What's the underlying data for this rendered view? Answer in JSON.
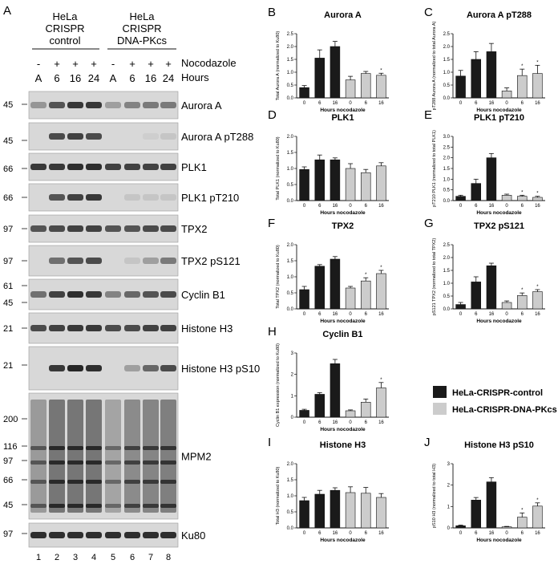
{
  "figure": {
    "panel_label": "A",
    "cell_lines": [
      {
        "line1": "HeLa",
        "line2": "CRISPR",
        "line3": "control"
      },
      {
        "line1": "HeLa",
        "line2": "CRISPR",
        "line3": "DNA-PKcs"
      }
    ],
    "nocodazole_signs": [
      "-",
      "+",
      "+",
      "+",
      "-",
      "+",
      "+",
      "+"
    ],
    "nocodazole_label": "Nocodazole",
    "hours": [
      "A",
      "6",
      "16",
      "24",
      "A",
      "6",
      "16",
      "24"
    ],
    "hours_label": "Hours",
    "lane_numbers": [
      "1",
      "2",
      "3",
      "4",
      "5",
      "6",
      "7",
      "8"
    ],
    "blots": [
      {
        "label": "Aurora A",
        "markers": [
          "45"
        ]
      },
      {
        "label": "Aurora A pT288",
        "markers": [
          "45"
        ]
      },
      {
        "label": "PLK1",
        "markers": [
          "66"
        ]
      },
      {
        "label": "PLK1 pT210",
        "markers": [
          "66"
        ]
      },
      {
        "label": "TPX2",
        "markers": [
          "97"
        ]
      },
      {
        "label": "TPX2 pS121",
        "markers": [
          "97"
        ]
      },
      {
        "label": "Cyclin B1",
        "markers": [
          "61",
          "45"
        ]
      },
      {
        "label": "Histone H3",
        "markers": [
          "21"
        ]
      },
      {
        "label": "Histone H3 pS10",
        "markers": [
          "21"
        ]
      },
      {
        "label": "MPM2",
        "markers": [
          "200",
          "116",
          "97",
          "66",
          "45"
        ]
      },
      {
        "label": "Ku80",
        "markers": [
          "97"
        ]
      }
    ],
    "legend": {
      "control": "HeLa-CRISPR-control",
      "dnapk": "HeLa-CRISPR-DNA-PKcs"
    },
    "colors": {
      "control": "#1a1a1a",
      "dnapk": "#cccccc",
      "blot_bg": "#d8d8d8",
      "band": "#1c1c1c"
    }
  },
  "chart_data": [
    {
      "panel": "B",
      "type": "bar",
      "title": "Aurora A",
      "ylabel": "Total Aurora A (normalized to Ku80)",
      "xlabel": "Hours nocodazole",
      "categories": [
        "0",
        "6",
        "16",
        "0",
        "6",
        "16"
      ],
      "groups": [
        "control",
        "control",
        "control",
        "dnapk",
        "dnapk",
        "dnapk"
      ],
      "values": [
        0.4,
        1.55,
        2.0,
        0.7,
        0.95,
        0.88
      ],
      "errors": [
        0.08,
        0.32,
        0.2,
        0.14,
        0.08,
        0.08
      ],
      "ylim": [
        0,
        2.5
      ],
      "yticks": [
        "0.0",
        "0.5",
        "1.0",
        "1.5",
        "2.0",
        "2.5"
      ],
      "sig": [
        "",
        "",
        "",
        "",
        "",
        "*"
      ]
    },
    {
      "panel": "C",
      "type": "bar",
      "title": "Aurora A pT288",
      "ylabel": "pT288 Aurora A (normalized to total Aurora A)",
      "xlabel": "Hours nocodazole",
      "categories": [
        "0",
        "6",
        "16",
        "0",
        "6",
        "16"
      ],
      "groups": [
        "control",
        "control",
        "control",
        "dnapk",
        "dnapk",
        "dnapk"
      ],
      "values": [
        0.85,
        1.5,
        1.8,
        0.27,
        0.87,
        0.95
      ],
      "errors": [
        0.22,
        0.3,
        0.32,
        0.12,
        0.25,
        0.32
      ],
      "ylim": [
        0,
        2.5
      ],
      "yticks": [
        "0.0",
        "0.5",
        "1.0",
        "1.5",
        "2.0",
        "2.5"
      ],
      "sig": [
        "",
        "",
        "",
        "",
        "*",
        "*"
      ]
    },
    {
      "panel": "D",
      "type": "bar",
      "title": "PLK1",
      "ylabel": "Total PLK1 (normalized to Ku80)",
      "xlabel": "Hours nocodazole",
      "categories": [
        "0",
        "6",
        "16",
        "0",
        "6",
        "16"
      ],
      "groups": [
        "control",
        "control",
        "control",
        "dnapk",
        "dnapk",
        "dnapk"
      ],
      "values": [
        0.97,
        1.27,
        1.27,
        1.0,
        0.87,
        1.08
      ],
      "errors": [
        0.08,
        0.15,
        0.06,
        0.15,
        0.1,
        0.1
      ],
      "ylim": [
        0,
        2.0
      ],
      "yticks": [
        "0.0",
        "0.5",
        "1.0",
        "1.5",
        "2.0"
      ],
      "sig": [
        "",
        "",
        "",
        "",
        "",
        ""
      ]
    },
    {
      "panel": "E",
      "type": "bar",
      "title": "PLK1 pT210",
      "ylabel": "pT210 PLK1 (normalized to total PLK1)",
      "xlabel": "Hours nocodazole",
      "categories": [
        "0",
        "6",
        "16",
        "0",
        "6",
        "16"
      ],
      "groups": [
        "control",
        "control",
        "control",
        "dnapk",
        "dnapk",
        "dnapk"
      ],
      "values": [
        0.2,
        0.8,
        2.0,
        0.25,
        0.2,
        0.15
      ],
      "errors": [
        0.05,
        0.2,
        0.2,
        0.05,
        0.05,
        0.05
      ],
      "ylim": [
        0,
        3.0
      ],
      "yticks": [
        "0.0",
        "0.5",
        "1.0",
        "1.5",
        "2.0",
        "2.5",
        "3.0"
      ],
      "sig": [
        "",
        "",
        "",
        "",
        "*",
        "*"
      ]
    },
    {
      "panel": "F",
      "type": "bar",
      "title": "TPX2",
      "ylabel": "Total TPX2 (normalized to Ku80)",
      "xlabel": "Hours nocodazole",
      "categories": [
        "0",
        "6",
        "16",
        "0",
        "6",
        "16"
      ],
      "groups": [
        "control",
        "control",
        "control",
        "dnapk",
        "dnapk",
        "dnapk"
      ],
      "values": [
        0.6,
        1.33,
        1.55,
        0.65,
        0.87,
        1.1
      ],
      "errors": [
        0.1,
        0.05,
        0.08,
        0.05,
        0.1,
        0.1
      ],
      "ylim": [
        0,
        2.0
      ],
      "yticks": [
        "0.0",
        "0.5",
        "1.0",
        "1.5",
        "2.0"
      ],
      "sig": [
        "",
        "",
        "",
        "",
        "*",
        "*"
      ]
    },
    {
      "panel": "G",
      "type": "bar",
      "title": "TPX2 pS121",
      "ylabel": "pS121 TPX2 (normalized to total TPX2)",
      "xlabel": "Hours nocodazole",
      "categories": [
        "0",
        "6",
        "16",
        "0",
        "6",
        "16"
      ],
      "groups": [
        "control",
        "control",
        "control",
        "dnapk",
        "dnapk",
        "dnapk"
      ],
      "values": [
        0.17,
        1.05,
        1.68,
        0.25,
        0.52,
        0.67
      ],
      "errors": [
        0.08,
        0.2,
        0.1,
        0.06,
        0.1,
        0.08
      ],
      "ylim": [
        0,
        2.5
      ],
      "yticks": [
        "0.0",
        "0.5",
        "1.0",
        "1.5",
        "2.0",
        "2.5"
      ],
      "sig": [
        "",
        "",
        "",
        "",
        "*",
        "*"
      ]
    },
    {
      "panel": "H",
      "type": "bar",
      "title": "Cyclin B1",
      "ylabel": "Cyclin B1 expression (normalized to Ku80)",
      "xlabel": "Hours nocodazole",
      "categories": [
        "0",
        "6",
        "16",
        "0",
        "6",
        "16"
      ],
      "groups": [
        "control",
        "control",
        "control",
        "dnapk",
        "dnapk",
        "dnapk"
      ],
      "values": [
        0.32,
        1.07,
        2.5,
        0.3,
        0.7,
        1.37
      ],
      "errors": [
        0.05,
        0.08,
        0.2,
        0.04,
        0.15,
        0.25
      ],
      "ylim": [
        0,
        3
      ],
      "yticks": [
        "0",
        "1",
        "2",
        "3"
      ],
      "sig": [
        "",
        "",
        "",
        "",
        "",
        "*"
      ]
    },
    {
      "panel": "I",
      "type": "bar",
      "title": "Histone H3",
      "ylabel": "Total H3 (normalized to Ku80)",
      "xlabel": "Hours nocodazole",
      "categories": [
        "0",
        "6",
        "16",
        "0",
        "6",
        "16"
      ],
      "groups": [
        "control",
        "control",
        "control",
        "dnapk",
        "dnapk",
        "dnapk"
      ],
      "values": [
        0.85,
        1.05,
        1.17,
        1.1,
        1.08,
        0.95
      ],
      "errors": [
        0.1,
        0.12,
        0.08,
        0.18,
        0.18,
        0.12
      ],
      "ylim": [
        0,
        2.0
      ],
      "yticks": [
        "0.0",
        "0.5",
        "1.0",
        "1.5",
        "2.0"
      ],
      "sig": [
        "",
        "",
        "",
        "",
        "",
        ""
      ]
    },
    {
      "panel": "J",
      "type": "bar",
      "title": "Histone H3 pS10",
      "ylabel": "pS10 H3 (normalized to total H3)",
      "xlabel": "Hours nocodazole",
      "categories": [
        "0",
        "6",
        "16",
        "0",
        "6",
        "16"
      ],
      "groups": [
        "control",
        "control",
        "control",
        "dnapk",
        "dnapk",
        "dnapk"
      ],
      "values": [
        0.1,
        1.3,
        2.15,
        0.05,
        0.5,
        1.02
      ],
      "errors": [
        0.03,
        0.12,
        0.2,
        0.02,
        0.2,
        0.15
      ],
      "ylim": [
        0,
        3
      ],
      "yticks": [
        "0",
        "1",
        "2",
        "3"
      ],
      "sig": [
        "",
        "",
        "",
        "",
        "*",
        "*"
      ]
    }
  ]
}
